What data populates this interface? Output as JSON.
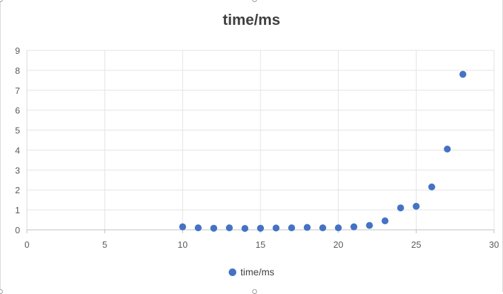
{
  "chart_data": {
    "type": "scatter",
    "title": "time/ms",
    "xlabel": "",
    "ylabel": "",
    "xlim": [
      0,
      30
    ],
    "ylim": [
      0,
      9
    ],
    "x_ticks": [
      "0",
      "5",
      "10",
      "15",
      "20",
      "25",
      "30"
    ],
    "y_ticks": [
      "0",
      "1",
      "2",
      "3",
      "4",
      "5",
      "6",
      "7",
      "8",
      "9"
    ],
    "grid": true,
    "legend_position": "bottom",
    "series": [
      {
        "name": "time/ms",
        "color": "#4472c4",
        "x": [
          10,
          11,
          12,
          13,
          14,
          15,
          16,
          17,
          18,
          19,
          20,
          21,
          22,
          23,
          24,
          25,
          26,
          27,
          28
        ],
        "y": [
          0.15,
          0.1,
          0.08,
          0.1,
          0.07,
          0.08,
          0.09,
          0.1,
          0.12,
          0.1,
          0.1,
          0.15,
          0.22,
          0.45,
          1.1,
          1.18,
          2.15,
          4.05,
          7.8
        ]
      }
    ]
  }
}
